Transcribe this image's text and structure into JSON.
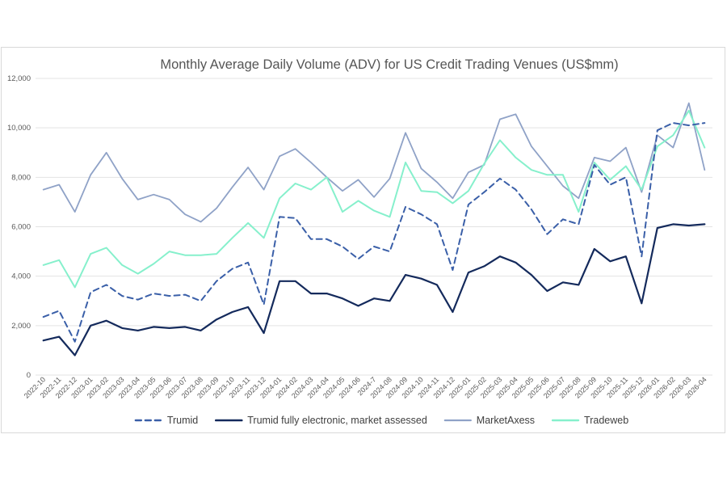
{
  "chart_data": {
    "type": "line",
    "title": "Monthly Average Daily Volume (ADV) for US Credit Trading Venues (US$mm)",
    "xlabel": "",
    "ylabel": "",
    "ylim": [
      0,
      12000
    ],
    "yticks": [
      0,
      2000,
      4000,
      6000,
      8000,
      10000,
      12000
    ],
    "ytick_labels": [
      "0",
      "2,000",
      "4,000",
      "6,000",
      "8,000",
      "10,000",
      "12,000"
    ],
    "grid": true,
    "legend_position": "bottom",
    "categories": [
      "2022-10",
      "2022-11",
      "2022-12",
      "2023-01",
      "2023-02",
      "2023-03",
      "2023-04",
      "2023-05",
      "2023-06",
      "2023-07",
      "2023-08",
      "2023-09",
      "2023-10",
      "2023-11",
      "2023-12",
      "2024-01",
      "2024-02",
      "2024-03",
      "2024-04",
      "2024-05",
      "2024-06",
      "2024-7",
      "2024-08",
      "2024-09",
      "2024-10",
      "2024-11",
      "2024-12",
      "2025-01",
      "2025-02",
      "2025-03",
      "2025-04",
      "2025-05",
      "2025-06",
      "2025-07",
      "2025-08",
      "2025-09",
      "2025-10",
      "2025-11",
      "2025-12",
      "2026-01",
      "2026-02",
      "2026-03",
      "2026-04"
    ],
    "series": [
      {
        "name": "Trumid",
        "color": "#3a5fa8",
        "dashed": true,
        "width": 2,
        "values": [
          2350,
          2600,
          1350,
          3350,
          3650,
          3200,
          3050,
          3300,
          3200,
          3250,
          3000,
          3800,
          4300,
          4550,
          2850,
          6400,
          6350,
          5500,
          5500,
          5200,
          4700,
          5200,
          5000,
          6800,
          6500,
          6100,
          4250,
          6900,
          7400,
          7950,
          7500,
          6700,
          5700,
          6300,
          6100,
          8500,
          7700,
          8000,
          4800,
          9900,
          10200,
          10100,
          10200
        ]
      },
      {
        "name": "Trumid fully electronic, market assessed",
        "color": "#142a5c",
        "dashed": false,
        "width": 2.2,
        "values": [
          1400,
          1550,
          800,
          2000,
          2200,
          1900,
          1800,
          1950,
          1900,
          1950,
          1800,
          2250,
          2550,
          2750,
          1700,
          3800,
          3800,
          3300,
          3300,
          3100,
          2800,
          3100,
          3000,
          4050,
          3900,
          3650,
          2550,
          4150,
          4400,
          4800,
          4550,
          4050,
          3400,
          3750,
          3650,
          5100,
          4600,
          4800,
          2900,
          5950,
          6100,
          6050,
          6100
        ]
      },
      {
        "name": "MarketAxess",
        "color": "#8fa2c7",
        "dashed": false,
        "width": 1.8,
        "values": [
          7500,
          7700,
          6600,
          8100,
          9000,
          7950,
          7100,
          7300,
          7100,
          6500,
          6200,
          6750,
          7600,
          8400,
          7500,
          8850,
          9150,
          8600,
          8000,
          7450,
          7900,
          7200,
          7950,
          9800,
          8350,
          7800,
          7150,
          8200,
          8500,
          10350,
          10550,
          9250,
          8450,
          7650,
          7150,
          8800,
          8650,
          9200,
          7400,
          9700,
          9200,
          11000,
          8300
        ]
      },
      {
        "name": "Tradeweb",
        "color": "#86f0cc",
        "dashed": false,
        "width": 2,
        "values": [
          4450,
          4650,
          3550,
          4900,
          5150,
          4450,
          4100,
          4500,
          5000,
          4850,
          4850,
          4900,
          5550,
          6150,
          5550,
          7150,
          7750,
          7500,
          8000,
          6600,
          7050,
          6650,
          6400,
          8600,
          7450,
          7400,
          6950,
          7450,
          8550,
          9500,
          8800,
          8300,
          8100,
          8100,
          6600,
          8600,
          7900,
          8450,
          7500,
          9250,
          9700,
          10700,
          9200
        ]
      }
    ]
  }
}
